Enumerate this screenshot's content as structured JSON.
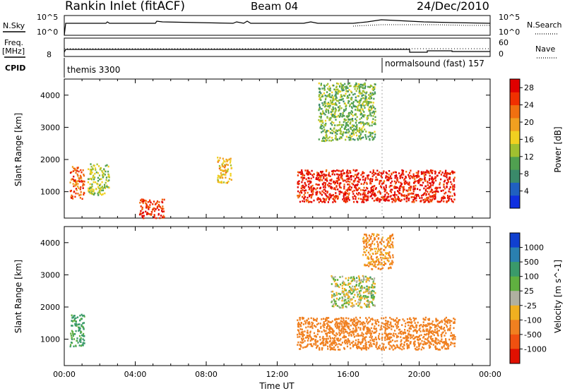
{
  "header": {
    "station": "Rankin Inlet (fitACF)",
    "beam": "Beam 04",
    "date": "24/Dec/2010"
  },
  "strip_labels": {
    "nsky": "N.Sky",
    "nsky_hi": "10^5",
    "nsky_lo": "10^0",
    "freq_top": "Freq.",
    "freq_unit": "[MHz]",
    "freq_tick": "8",
    "cpid": "CPID",
    "nsearch": "N.Search",
    "nsearch_hi": "10^5",
    "nsearch_lo": "10^0",
    "nave": "Nave",
    "nave_hi": "60",
    "nave_lo": "0",
    "cpid_1": "themis 3300",
    "cpid_2": "normalsound (fast) 157"
  },
  "colors": {
    "power_scale": [
      "#1030e0",
      "#2060c0",
      "#3a8a6a",
      "#50a050",
      "#a0c030",
      "#f0d020",
      "#f0a020",
      "#f07010",
      "#f03000",
      "#e00000"
    ],
    "velocity_scale": [
      "#1040d0",
      "#2a80b0",
      "#3a9a6a",
      "#60b040",
      "#b0b0a0",
      "#f0b020",
      "#f08020",
      "#f05010",
      "#e01000"
    ]
  },
  "chart_data": [
    {
      "type": "heatmap",
      "title": "Power",
      "xlabel": "",
      "ylabel": "Slant Range [km]",
      "x_ticks": [
        "00:00",
        "04:00",
        "08:00",
        "12:00",
        "16:00",
        "20:00",
        "00:00"
      ],
      "x_range_hours": [
        0,
        24
      ],
      "y_ticks": [
        1000,
        2000,
        3000,
        4000
      ],
      "y_range": [
        180,
        4500
      ],
      "colorbar": {
        "label": "Power [dB]",
        "ticks": [
          4,
          8,
          12,
          16,
          20,
          24,
          28
        ],
        "range": [
          0,
          30
        ]
      },
      "echo_regions": [
        {
          "t0": 0.3,
          "t1": 1.1,
          "r0": 800,
          "r1": 1800,
          "value": 24
        },
        {
          "t0": 1.3,
          "t1": 2.5,
          "r0": 900,
          "r1": 1900,
          "value": 14
        },
        {
          "t0": 4.2,
          "t1": 5.6,
          "r0": 200,
          "r1": 800,
          "value": 26
        },
        {
          "t0": 8.6,
          "t1": 9.4,
          "r0": 1300,
          "r1": 2100,
          "value": 18
        },
        {
          "t0": 13.1,
          "t1": 22.0,
          "r0": 700,
          "r1": 1700,
          "value": 27
        },
        {
          "t0": 14.3,
          "t1": 17.5,
          "r0": 2600,
          "r1": 4400,
          "value": 12
        }
      ]
    },
    {
      "type": "heatmap",
      "title": "Velocity",
      "xlabel": "Time UT",
      "ylabel": "Slant Range [km]",
      "x_ticks": [
        "00:00",
        "04:00",
        "08:00",
        "12:00",
        "16:00",
        "20:00",
        "00:00"
      ],
      "x_range_hours": [
        0,
        24
      ],
      "y_ticks": [
        1000,
        2000,
        3000,
        4000
      ],
      "y_range": [
        180,
        4500
      ],
      "colorbar": {
        "label": "Velocity [m s^-1]",
        "ticks": [
          1000,
          500,
          100,
          25,
          -25,
          -100,
          -500,
          -1000
        ]
      },
      "echo_regions": [
        {
          "t0": 0.3,
          "t1": 1.1,
          "r0": 800,
          "r1": 1800,
          "value": 150
        },
        {
          "t0": 13.1,
          "t1": 22.0,
          "r0": 700,
          "r1": 1700,
          "value": -200
        },
        {
          "t0": 15.0,
          "t1": 17.5,
          "r0": 2000,
          "r1": 3000,
          "value": 10
        },
        {
          "t0": 16.8,
          "t1": 18.5,
          "r0": 3200,
          "r1": 4300,
          "value": -150
        }
      ]
    }
  ]
}
